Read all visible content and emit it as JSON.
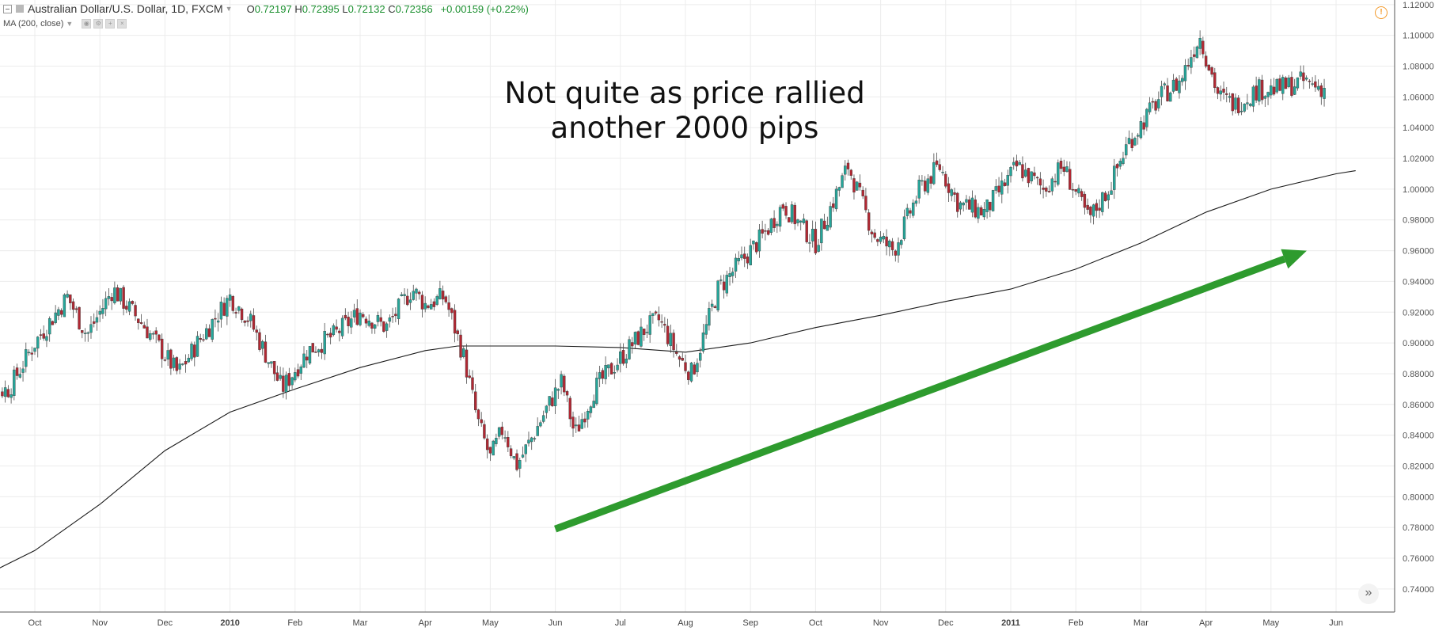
{
  "legend": {
    "symbol": "Australian Dollar/U.S. Dollar, 1D, FXCM",
    "open_label": "O",
    "open": "0.72197",
    "high_label": "H",
    "high": "0.72395",
    "low_label": "L",
    "low": "0.72132",
    "close_label": "C",
    "close": "0.72356",
    "change": "+0.00159 (+0.22%)",
    "indicator": "MA (200, close)"
  },
  "annotation": {
    "line1": "Not quite as price rallied",
    "line2": "another 2000 pips"
  },
  "colors": {
    "up": "#26a69a",
    "down": "#b22833",
    "ma": "#1a1a1a",
    "arrow": "#2e9b2e",
    "grid": "#ececec",
    "accent": "#f39a2b"
  },
  "icons": {
    "alert": "warning-circle-icon",
    "scroll": "double-chevron-right-icon"
  },
  "chart_data": {
    "type": "candlestick",
    "title": "Australian Dollar/U.S. Dollar, 1D, FXCM",
    "xlabel": "",
    "ylabel": "",
    "grid": true,
    "y_axis_side": "right",
    "ylim": [
      0.725,
      1.123
    ],
    "x_tick_labels": [
      {
        "label": "Oct",
        "bold": false
      },
      {
        "label": "Nov",
        "bold": false
      },
      {
        "label": "Dec",
        "bold": false
      },
      {
        "label": "2010",
        "bold": true
      },
      {
        "label": "Feb",
        "bold": false
      },
      {
        "label": "Mar",
        "bold": false
      },
      {
        "label": "Apr",
        "bold": false
      },
      {
        "label": "May",
        "bold": false
      },
      {
        "label": "Jun",
        "bold": false
      },
      {
        "label": "Jul",
        "bold": false
      },
      {
        "label": "Aug",
        "bold": false
      },
      {
        "label": "Sep",
        "bold": false
      },
      {
        "label": "Oct",
        "bold": false
      },
      {
        "label": "Nov",
        "bold": false
      },
      {
        "label": "Dec",
        "bold": false
      },
      {
        "label": "2011",
        "bold": true
      },
      {
        "label": "Feb",
        "bold": false
      },
      {
        "label": "Mar",
        "bold": false
      },
      {
        "label": "Apr",
        "bold": false
      },
      {
        "label": "May",
        "bold": false
      },
      {
        "label": "Jun",
        "bold": false
      }
    ],
    "y_tick_labels": [
      "1.12000",
      "1.10000",
      "1.08000",
      "1.06000",
      "1.04000",
      "1.02000",
      "1.00000",
      "0.98000",
      "0.96000",
      "0.94000",
      "0.92000",
      "0.90000",
      "0.88000",
      "0.86000",
      "0.84000",
      "0.82000",
      "0.80000",
      "0.78000",
      "0.76000",
      "0.74000"
    ],
    "y_ticks": [
      1.12,
      1.1,
      1.08,
      1.06,
      1.04,
      1.02,
      1.0,
      0.98,
      0.96,
      0.94,
      0.92,
      0.9,
      0.88,
      0.86,
      0.84,
      0.82,
      0.8,
      0.78,
      0.76,
      0.74
    ],
    "x_tick_month_index": [
      1,
      2,
      3,
      4,
      5,
      6,
      7,
      8,
      9,
      10,
      11,
      12,
      13,
      14,
      15,
      16,
      17,
      18,
      19,
      20,
      21
    ],
    "price_path": {
      "month_index": [
        0,
        0.6,
        1.0,
        1.5,
        1.8,
        2.2,
        2.7,
        3.2,
        3.5,
        4.0,
        4.3,
        4.8,
        5.2,
        5.6,
        6.0,
        6.4,
        6.8,
        7.0,
        7.3,
        7.6,
        7.8,
        8.0,
        8.2,
        8.4,
        8.6,
        8.9,
        9.1,
        9.3,
        9.6,
        10.0,
        10.4,
        10.6,
        10.9,
        11.1,
        11.5,
        11.8,
        12.2,
        12.5,
        13.0,
        13.5,
        13.9,
        14.2,
        14.6,
        14.9,
        15.2,
        15.6,
        16.1,
        16.5,
        16.8,
        17.2,
        17.5,
        17.8,
        18.3,
        18.6,
        18.9,
        19.2,
        19.45,
        19.8,
        20.1,
        20.5,
        20.85
      ],
      "close": [
        0.865,
        0.87,
        0.9,
        0.93,
        0.905,
        0.935,
        0.91,
        0.88,
        0.9,
        0.93,
        0.915,
        0.87,
        0.895,
        0.905,
        0.92,
        0.91,
        0.935,
        0.925,
        0.93,
        0.89,
        0.85,
        0.825,
        0.845,
        0.82,
        0.835,
        0.86,
        0.875,
        0.84,
        0.87,
        0.89,
        0.91,
        0.915,
        0.89,
        0.88,
        0.935,
        0.95,
        0.97,
        0.99,
        0.965,
        1.015,
        0.97,
        0.96,
        1.0,
        1.015,
        0.99,
        0.985,
        1.015,
        1.0,
        1.015,
        0.98,
        1.0,
        1.03,
        1.06,
        1.07,
        1.1,
        1.06,
        1.055,
        1.065,
        1.065,
        1.07,
        1.065
      ]
    },
    "series": [
      {
        "name": "MA (200, close)",
        "month_index": [
          0,
          1,
          2,
          3,
          4,
          5,
          6,
          7,
          7.5,
          8,
          9,
          10,
          11,
          12,
          13,
          14,
          15,
          16,
          17,
          18,
          19,
          20,
          21,
          21.3
        ],
        "values": [
          0.744,
          0.765,
          0.795,
          0.83,
          0.855,
          0.87,
          0.884,
          0.895,
          0.898,
          0.898,
          0.898,
          0.897,
          0.894,
          0.9,
          0.91,
          0.918,
          0.927,
          0.935,
          0.948,
          0.965,
          0.985,
          1.0,
          1.01,
          1.012
        ]
      }
    ]
  }
}
